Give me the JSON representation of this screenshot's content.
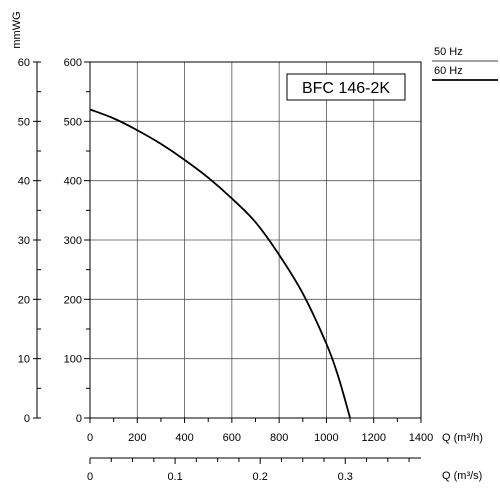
{
  "chart_data": {
    "type": "line",
    "model_label": "BFC 146-2K",
    "x": {
      "label": "Q (m³/h)",
      "ticks": [
        0,
        200,
        400,
        600,
        800,
        1000,
        1200,
        1400
      ],
      "range": [
        0,
        1400
      ]
    },
    "x_secondary": {
      "label": "Q (m³/s)",
      "ticks": [
        "0",
        "0.1",
        "0.2",
        "0.3"
      ],
      "tick_values": [
        0,
        0.1,
        0.2,
        0.3
      ],
      "range": [
        0,
        0.389
      ]
    },
    "y": {
      "ticks": [
        0,
        100,
        200,
        300,
        400,
        500,
        600
      ],
      "range": [
        0,
        600
      ]
    },
    "y_secondary": {
      "label": "mmWG",
      "ticks": [
        0,
        10,
        20,
        30,
        40,
        50,
        60
      ],
      "range": [
        0,
        60
      ]
    },
    "legend": [
      {
        "name": "50 Hz",
        "style": "thin",
        "color": "#000000"
      },
      {
        "name": "60 Hz",
        "style": "thick",
        "color": "#000000"
      }
    ],
    "series": [
      {
        "legend": "60 Hz",
        "points": [
          [
            0,
            520
          ],
          [
            100,
            505
          ],
          [
            200,
            485
          ],
          [
            300,
            462
          ],
          [
            400,
            435
          ],
          [
            500,
            405
          ],
          [
            600,
            370
          ],
          [
            700,
            330
          ],
          [
            800,
            275
          ],
          [
            900,
            210
          ],
          [
            1000,
            125
          ],
          [
            1050,
            70
          ],
          [
            1100,
            0
          ]
        ]
      }
    ]
  }
}
